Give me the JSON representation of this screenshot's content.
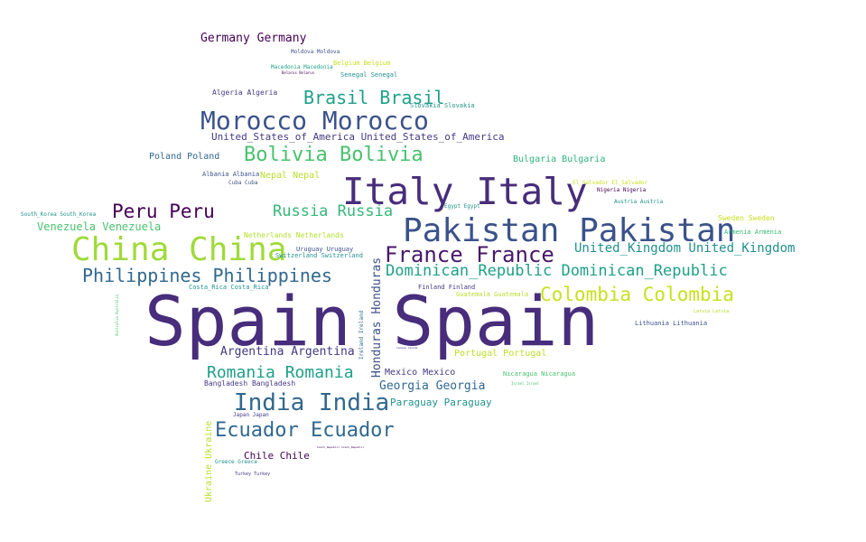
{
  "words": [
    {
      "text": "Spain Spain",
      "color": "#472d7b"
    },
    {
      "text": "Italy Italy",
      "color": "#472d7b"
    },
    {
      "text": "Pakistan Pakistan",
      "color": "#3b528b"
    },
    {
      "text": "China China",
      "color": "#9fda3a"
    },
    {
      "text": "Morocco Morocco",
      "color": "#3b528b"
    },
    {
      "text": "France France",
      "color": "#48186a"
    },
    {
      "text": "India India",
      "color": "#31688e"
    },
    {
      "text": "Ecuador Ecuador",
      "color": "#31688e"
    },
    {
      "text": "Colombia Colombia",
      "color": "#c8e020"
    },
    {
      "text": "Bolivia Bolivia",
      "color": "#4ac16d"
    },
    {
      "text": "Philippines Philippines",
      "color": "#31688e"
    },
    {
      "text": "Brasil Brasil",
      "color": "#1fa088"
    },
    {
      "text": "Peru Peru",
      "color": "#440154"
    },
    {
      "text": "Romania Romania",
      "color": "#1fa088"
    },
    {
      "text": "Dominican_Republic Dominican_Republic",
      "color": "#1fa088"
    },
    {
      "text": "Russia Russia",
      "color": "#35b779"
    },
    {
      "text": "United_Kingdom United_Kingdom",
      "color": "#21918c"
    },
    {
      "text": "Argentina Argentina",
      "color": "#443a83"
    },
    {
      "text": "Georgia Georgia",
      "color": "#31688e"
    },
    {
      "text": "Germany Germany",
      "color": "#440154"
    },
    {
      "text": "Venezuela Venezuela",
      "color": "#4ac16d"
    },
    {
      "text": "Honduras Honduras",
      "color": "#3b528b"
    },
    {
      "text": "United_States_of_America United_States_of_America",
      "color": "#443a83"
    },
    {
      "text": "Chile Chile",
      "color": "#440154"
    },
    {
      "text": "Mexico Mexico",
      "color": "#443a83"
    },
    {
      "text": "Paraguay Paraguay",
      "color": "#21918c"
    },
    {
      "text": "Poland Poland",
      "color": "#31688e"
    },
    {
      "text": "Bulgaria Bulgaria",
      "color": "#2eb37c"
    },
    {
      "text": "Portugal Portugal",
      "color": "#bddf26"
    },
    {
      "text": "Nepal Nepal",
      "color": "#b5de2b"
    },
    {
      "text": "Ukraine Ukraine",
      "color": "#b5de2b"
    },
    {
      "text": "Algeria Algeria",
      "color": "#443a83"
    },
    {
      "text": "Sweden Sweden",
      "color": "#c8e020"
    },
    {
      "text": "Netherlands Netherlands",
      "color": "#b5de2b"
    },
    {
      "text": "Senegal Senegal",
      "color": "#21918c"
    },
    {
      "text": "Uruguay Uruguay",
      "color": "#3b528b"
    },
    {
      "text": "Bangladesh Bangladesh",
      "color": "#443a83"
    },
    {
      "text": "Costa_Rica Costa_Rica",
      "color": "#21918c"
    },
    {
      "text": "Finland Finland",
      "color": "#443a83"
    },
    {
      "text": "Guatemala Guatemala",
      "color": "#b5de2b"
    },
    {
      "text": "Lithuania Lithuania",
      "color": "#3b528b"
    },
    {
      "text": "Slovakia Slovakia",
      "color": "#21918c"
    },
    {
      "text": "Nicaragua Nicaragua",
      "color": "#4ac16d"
    },
    {
      "text": "Armenia Armenia",
      "color": "#35b779"
    },
    {
      "text": "Switzerland Switzerland",
      "color": "#21918c"
    },
    {
      "text": "Albania Albania",
      "color": "#3b528b"
    },
    {
      "text": "Belgium Belgium",
      "color": "#c8e020"
    },
    {
      "text": "Macedonia Macedonia",
      "color": "#1fa088"
    },
    {
      "text": "Moldova Moldova",
      "color": "#3b528b"
    },
    {
      "text": "Cuba Cuba",
      "color": "#3b528b"
    },
    {
      "text": "South_Korea South_Korea",
      "color": "#21918c"
    },
    {
      "text": "Egypt Egypt",
      "color": "#21918c"
    },
    {
      "text": "Austria Austria",
      "color": "#21918c"
    },
    {
      "text": "Nigeria Nigeria",
      "color": "#440154"
    },
    {
      "text": "El_Salvador El_Salvador",
      "color": "#c8e020"
    },
    {
      "text": "Greece Greece",
      "color": "#21918c"
    },
    {
      "text": "Japan Japan",
      "color": "#443a83"
    },
    {
      "text": "Turkey Turkey",
      "color": "#443a83"
    },
    {
      "text": "Ireland Ireland",
      "color": "#31688e"
    },
    {
      "text": "Latvia Latvia",
      "color": "#b5de2b"
    },
    {
      "text": "Israel Israel",
      "color": "#4ac16d"
    },
    {
      "text": "Belarus Belarus",
      "color": "#440154"
    },
    {
      "text": "Australia Australia",
      "color": "#4ac16d"
    },
    {
      "text": "Canada Canada",
      "color": "#443a83"
    },
    {
      "text": "Czech_Republic Czech_Republic",
      "color": "#440154"
    },
    {
      "text": "Pakistan Pakistan",
      "color": "#3b528b"
    }
  ]
}
